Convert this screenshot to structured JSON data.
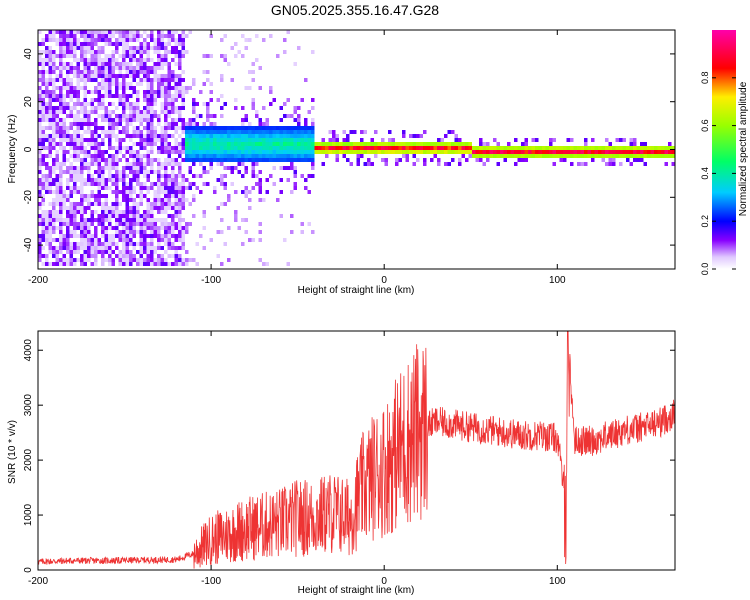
{
  "title": "GN05.2025.355.16.47.G28",
  "chart_data": [
    {
      "type": "heatmap",
      "xlabel": "Height of straight line (km)",
      "ylabel": "Frequency (Hz)",
      "xlim": [
        -200,
        168
      ],
      "ylim": [
        -50,
        50
      ],
      "xticks": [
        -200,
        -100,
        0,
        100
      ],
      "yticks": [
        -40,
        -20,
        0,
        20,
        40
      ],
      "colorbar": {
        "label": "Normalized spectral amplitude",
        "range": [
          0,
          1
        ],
        "ticks": [
          "0.0",
          "0.2",
          "0.4",
          "0.6",
          "0.8"
        ]
      },
      "regions": [
        {
          "x_range": [
            -200,
            -115
          ],
          "freq_range": [
            -50,
            50
          ],
          "amplitude": [
            0.05,
            0.15
          ],
          "description_scale": "noise"
        },
        {
          "x_range": [
            -115,
            -40
          ],
          "center_freq_hz": 2,
          "spread_hz": 8,
          "amplitude": [
            0.2,
            0.45
          ]
        },
        {
          "x_range": [
            -40,
            50
          ],
          "center_freq_hz": 0.5,
          "spread_hz": 3,
          "amplitude": [
            0.45,
            0.95
          ]
        },
        {
          "x_range": [
            50,
            168
          ],
          "center_freq_hz": -1,
          "spread_hz": 2.5,
          "amplitude": [
            0.5,
            0.95
          ]
        }
      ]
    },
    {
      "type": "line",
      "xlabel": "Height of straight line (km)",
      "ylabel": "SNR (10 * v/v)",
      "xlim": [
        -200,
        168
      ],
      "ylim": [
        0,
        4350
      ],
      "xticks": [
        -200,
        -100,
        0,
        100
      ],
      "yticks": [
        0,
        1000,
        2000,
        3000,
        4000
      ],
      "color": "#ee3333",
      "series": [
        {
          "x": [
            -200,
            -180,
            -160,
            -140,
            -120,
            -110,
            -100,
            -90,
            -80,
            -70,
            -60,
            -50,
            -40,
            -30,
            -20,
            -12,
            -5,
            0,
            10,
            20,
            30,
            40,
            50,
            60,
            70,
            80,
            90,
            100,
            105,
            106,
            110,
            120,
            130,
            140,
            150,
            160,
            168
          ],
          "values": [
            150,
            170,
            170,
            180,
            190,
            300,
            550,
            650,
            750,
            800,
            850,
            950,
            950,
            1050,
            950,
            1500,
            1750,
            1850,
            2250,
            2550,
            2700,
            2650,
            2600,
            2550,
            2500,
            2450,
            2450,
            2400,
            1200,
            4300,
            2350,
            2350,
            2450,
            2550,
            2600,
            2700,
            2850
          ]
        }
      ]
    }
  ]
}
